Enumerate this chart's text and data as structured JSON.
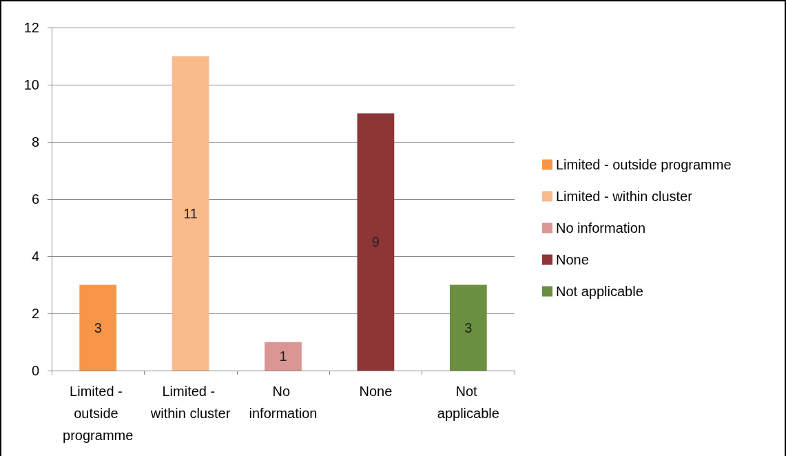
{
  "chart_data": {
    "type": "bar",
    "categories": [
      "Limited - outside programme",
      "Limited - within cluster",
      "No information",
      "None",
      "Not applicable"
    ],
    "series": [
      {
        "name": "Limited - outside programme",
        "color": "#f79646",
        "values": [
          3,
          null,
          null,
          null,
          null
        ]
      },
      {
        "name": "Limited - within cluster",
        "color": "#fabb8c",
        "values": [
          null,
          11,
          null,
          null,
          null
        ]
      },
      {
        "name": "No information",
        "color": "#d99694",
        "values": [
          null,
          null,
          1,
          null,
          null
        ]
      },
      {
        "name": "None",
        "color": "#8e3535",
        "values": [
          null,
          null,
          null,
          9,
          null
        ]
      },
      {
        "name": "Not applicable",
        "color": "#6a8f40",
        "values": [
          null,
          null,
          null,
          null,
          3
        ]
      }
    ],
    "ylim": [
      0,
      12
    ],
    "yticks": [
      0,
      2,
      4,
      6,
      8,
      10,
      12
    ],
    "grid": "y",
    "legend": "right",
    "data_labels": true
  }
}
